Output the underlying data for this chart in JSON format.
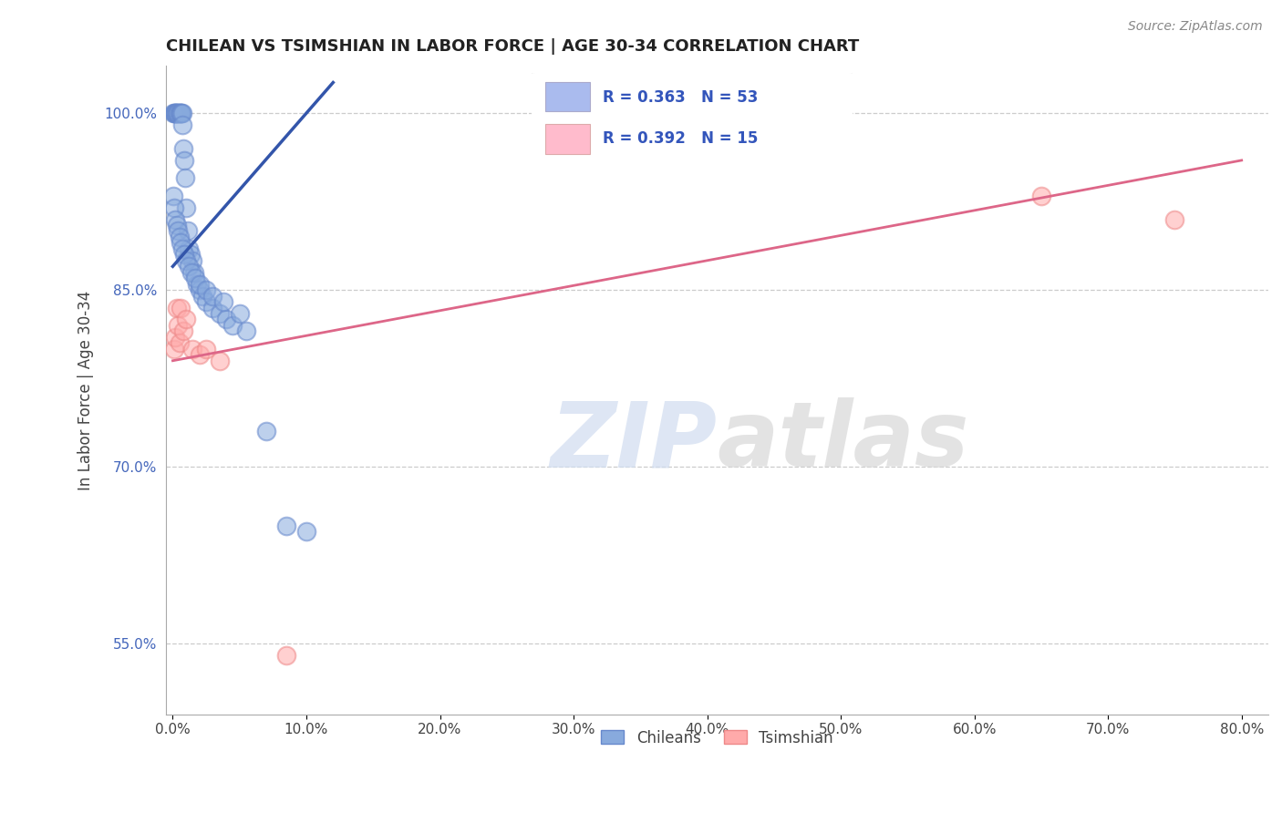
{
  "title": "CHILEAN VS TSIMSHIAN IN LABOR FORCE | AGE 30-34 CORRELATION CHART",
  "source_text": "Source: ZipAtlas.com",
  "ylabel": "In Labor Force | Age 30-34",
  "xlim_min": -0.5,
  "xlim_max": 82,
  "ylim_min": 49,
  "ylim_max": 104,
  "xticks": [
    0,
    10,
    20,
    30,
    40,
    50,
    60,
    70,
    80
  ],
  "xticklabels": [
    "0.0%",
    "10.0%",
    "20.0%",
    "30.0%",
    "40.0%",
    "50.0%",
    "60.0%",
    "70.0%",
    "80.0%"
  ],
  "yticks": [
    55,
    70,
    85,
    100
  ],
  "yticklabels": [
    "55.0%",
    "70.0%",
    "85.0%",
    "100.0%"
  ],
  "watermark_zip": "ZIP",
  "watermark_atlas": "atlas",
  "chilean_color": "#88AADD",
  "chilean_edge_color": "#6688CC",
  "tsimshian_color": "#FFAAAA",
  "tsimshian_edge_color": "#EE8888",
  "chilean_line_color": "#3355AA",
  "tsimshian_line_color": "#DD6688",
  "R_chilean": 0.363,
  "N_chilean": 53,
  "R_tsimshian": 0.392,
  "N_tsimshian": 15,
  "legend_chilean_color": "#AABBEE",
  "legend_tsimshian_color": "#FFBBCC",
  "chilean_x": [
    0.05,
    0.1,
    0.15,
    0.2,
    0.25,
    0.3,
    0.35,
    0.4,
    0.5,
    0.55,
    0.6,
    0.65,
    0.7,
    0.75,
    0.8,
    0.85,
    0.9,
    1.0,
    1.1,
    1.2,
    1.3,
    1.5,
    1.6,
    1.8,
    2.0,
    2.2,
    2.5,
    3.0,
    3.5,
    4.0,
    4.5,
    5.5,
    7.0,
    8.5,
    10.0,
    0.05,
    0.1,
    0.2,
    0.3,
    0.4,
    0.5,
    0.6,
    0.7,
    0.85,
    1.0,
    1.2,
    1.4,
    1.7,
    2.0,
    2.5,
    3.0,
    3.8,
    5.0
  ],
  "chilean_y": [
    100.0,
    100.0,
    100.0,
    100.0,
    100.0,
    100.0,
    100.0,
    100.0,
    100.0,
    100.0,
    100.0,
    100.0,
    100.0,
    99.0,
    97.0,
    96.0,
    94.5,
    92.0,
    90.0,
    88.5,
    88.0,
    87.5,
    86.5,
    85.5,
    85.0,
    84.5,
    84.0,
    83.5,
    83.0,
    82.5,
    82.0,
    81.5,
    73.0,
    65.0,
    64.5,
    93.0,
    92.0,
    91.0,
    90.5,
    90.0,
    89.5,
    89.0,
    88.5,
    88.0,
    87.5,
    87.0,
    86.5,
    86.0,
    85.5,
    85.0,
    84.5,
    84.0,
    83.0
  ],
  "tsimshian_x": [
    0.1,
    0.2,
    0.3,
    0.4,
    0.5,
    0.6,
    0.8,
    1.0,
    1.5,
    2.0,
    2.5,
    3.5,
    8.5,
    65.0,
    75.0
  ],
  "tsimshian_y": [
    80.0,
    81.0,
    83.5,
    82.0,
    80.5,
    83.5,
    81.5,
    82.5,
    80.0,
    79.5,
    80.0,
    79.0,
    54.0,
    93.0,
    91.0
  ]
}
